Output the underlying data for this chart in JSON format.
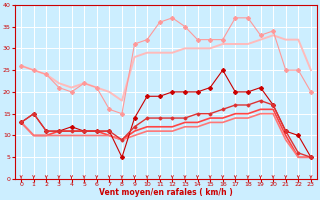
{
  "xlabel": "Vent moyen/en rafales ( km/h )",
  "background_color": "#cceeff",
  "grid_color": "#ffffff",
  "xlim": [
    -0.5,
    23.5
  ],
  "ylim": [
    0,
    40
  ],
  "yticks": [
    0,
    5,
    10,
    15,
    20,
    25,
    30,
    35,
    40
  ],
  "xticks": [
    0,
    1,
    2,
    3,
    4,
    5,
    6,
    7,
    8,
    9,
    10,
    11,
    12,
    13,
    14,
    15,
    16,
    17,
    18,
    19,
    20,
    21,
    22,
    23
  ],
  "series": [
    {
      "x": [
        0,
        1,
        2,
        3,
        4,
        5,
        6,
        7,
        8,
        9,
        10,
        11,
        12,
        13,
        14,
        15,
        16,
        17,
        18,
        19,
        20,
        21,
        22,
        23
      ],
      "y": [
        26,
        25,
        24,
        21,
        20,
        22,
        21,
        16,
        15,
        31,
        32,
        36,
        37,
        35,
        32,
        32,
        32,
        37,
        37,
        33,
        34,
        25,
        25,
        20
      ],
      "color": "#ff9999",
      "lw": 0.8,
      "marker": "D",
      "ms": 2.0
    },
    {
      "x": [
        0,
        1,
        2,
        3,
        4,
        5,
        6,
        7,
        8,
        9,
        10,
        11,
        12,
        13,
        14,
        15,
        16,
        17,
        18,
        19,
        20,
        21,
        22,
        23
      ],
      "y": [
        26,
        25,
        24,
        22,
        21,
        22,
        21,
        20,
        18,
        28,
        29,
        29,
        29,
        30,
        30,
        30,
        31,
        31,
        31,
        32,
        33,
        32,
        32,
        25
      ],
      "color": "#ffbbbb",
      "lw": 1.4,
      "marker": null,
      "ms": 0
    },
    {
      "x": [
        0,
        1,
        2,
        3,
        4,
        5,
        6,
        7,
        8,
        9,
        10,
        11,
        12,
        13,
        14,
        15,
        16,
        17,
        18,
        19,
        20,
        21,
        22,
        23
      ],
      "y": [
        13,
        15,
        11,
        11,
        12,
        11,
        11,
        11,
        5,
        14,
        19,
        19,
        20,
        20,
        20,
        21,
        25,
        20,
        20,
        21,
        17,
        11,
        10,
        5
      ],
      "color": "#cc0000",
      "lw": 0.8,
      "marker": "D",
      "ms": 2.0
    },
    {
      "x": [
        0,
        1,
        2,
        3,
        4,
        5,
        6,
        7,
        8,
        9,
        10,
        11,
        12,
        13,
        14,
        15,
        16,
        17,
        18,
        19,
        20,
        21,
        22,
        23
      ],
      "y": [
        13,
        15,
        11,
        11,
        11,
        11,
        11,
        11,
        9,
        12,
        14,
        14,
        14,
        14,
        15,
        15,
        16,
        17,
        17,
        18,
        17,
        11,
        6,
        5
      ],
      "color": "#dd3333",
      "lw": 1.0,
      "marker": "D",
      "ms": 1.5
    },
    {
      "x": [
        0,
        1,
        2,
        3,
        4,
        5,
        6,
        7,
        8,
        9,
        10,
        11,
        12,
        13,
        14,
        15,
        16,
        17,
        18,
        19,
        20,
        21,
        22,
        23
      ],
      "y": [
        13,
        10,
        10,
        11,
        11,
        11,
        11,
        10,
        9,
        11,
        12,
        12,
        12,
        13,
        13,
        14,
        14,
        15,
        15,
        16,
        16,
        10,
        5,
        5
      ],
      "color": "#ff4444",
      "lw": 1.2,
      "marker": null,
      "ms": 0
    },
    {
      "x": [
        0,
        1,
        2,
        3,
        4,
        5,
        6,
        7,
        8,
        9,
        10,
        11,
        12,
        13,
        14,
        15,
        16,
        17,
        18,
        19,
        20,
        21,
        22,
        23
      ],
      "y": [
        13,
        10,
        10,
        10,
        10,
        10,
        10,
        10,
        9,
        10,
        11,
        11,
        11,
        12,
        12,
        13,
        13,
        14,
        14,
        15,
        15,
        9,
        5,
        5
      ],
      "color": "#ff7777",
      "lw": 1.2,
      "marker": null,
      "ms": 0
    }
  ]
}
